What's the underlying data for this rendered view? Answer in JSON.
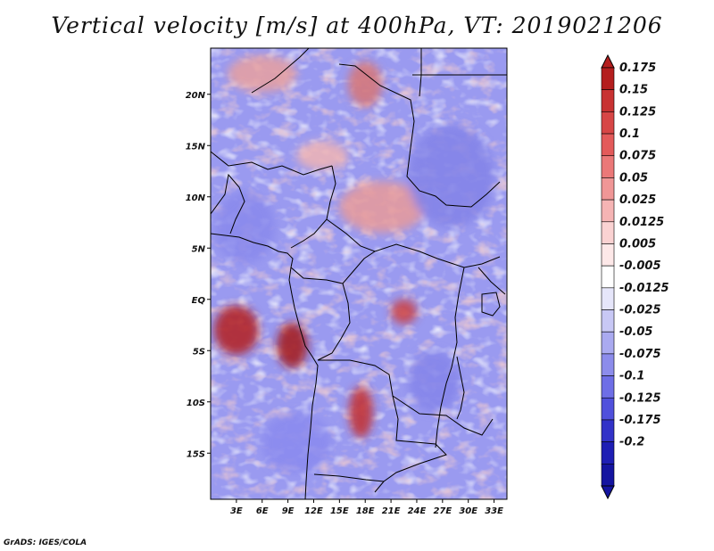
{
  "title": "Vertical velocity [m/s] at 400hPa, VT: 2019021206",
  "credit": "GrADS: IGES/COLA",
  "map": {
    "region": "Central Africa",
    "lon_range": [
      0,
      34.5
    ],
    "lat_range": [
      -19.5,
      24.5
    ],
    "lat_ticks": [
      {
        "lat": 20,
        "label": "20N"
      },
      {
        "lat": 15,
        "label": "15N"
      },
      {
        "lat": 10,
        "label": "10N"
      },
      {
        "lat": 5,
        "label": "5N"
      },
      {
        "lat": 0,
        "label": "EQ"
      },
      {
        "lat": -5,
        "label": "5S"
      },
      {
        "lat": -10,
        "label": "10S"
      },
      {
        "lat": -15,
        "label": "15S"
      }
    ],
    "lon_ticks": [
      {
        "lon": 3,
        "label": "3E"
      },
      {
        "lon": 6,
        "label": "6E"
      },
      {
        "lon": 9,
        "label": "9E"
      },
      {
        "lon": 12,
        "label": "12E"
      },
      {
        "lon": 15,
        "label": "15E"
      },
      {
        "lon": 18,
        "label": "18E"
      },
      {
        "lon": 21,
        "label": "21E"
      },
      {
        "lon": 24,
        "label": "24E"
      },
      {
        "lon": 27,
        "label": "27E"
      },
      {
        "lon": 30,
        "label": "30E"
      },
      {
        "lon": 33,
        "label": "33E"
      }
    ],
    "field_background": "#9a9af0",
    "features": [
      {
        "kind": "strong-ascent",
        "lon": 3,
        "lat": -3,
        "rx": 2.6,
        "ry": 2.4,
        "color": "#b41e1e"
      },
      {
        "kind": "strong-ascent",
        "lon": 9.5,
        "lat": -4.5,
        "rx": 1.8,
        "ry": 2.2,
        "color": "#a51515"
      },
      {
        "kind": "strong-ascent",
        "lon": 17.5,
        "lat": -11,
        "rx": 1.4,
        "ry": 2.5,
        "color": "#c33030"
      },
      {
        "kind": "ascent",
        "lon": 22.5,
        "lat": -1.2,
        "rx": 1.5,
        "ry": 1.2,
        "color": "#cc4040"
      },
      {
        "kind": "ascent",
        "lon": 20,
        "lat": 9,
        "rx": 5,
        "ry": 2.5,
        "color": "#e89a9a"
      },
      {
        "kind": "ascent",
        "lon": 6,
        "lat": 22,
        "rx": 4,
        "ry": 1.8,
        "color": "#e8a0a0"
      },
      {
        "kind": "ascent",
        "lon": 18,
        "lat": 21,
        "rx": 2,
        "ry": 2.2,
        "color": "#d77575"
      },
      {
        "kind": "ascent",
        "lon": 13,
        "lat": 14,
        "rx": 3,
        "ry": 1.4,
        "color": "#f0b4b4"
      },
      {
        "kind": "subsidence",
        "lon": 28,
        "lat": 12,
        "rx": 5,
        "ry": 5,
        "color": "#8282e8"
      },
      {
        "kind": "subsidence",
        "lon": 4,
        "lat": 7,
        "rx": 3.5,
        "ry": 3.5,
        "color": "#8888ec"
      },
      {
        "kind": "subsidence",
        "lon": 10,
        "lat": -14,
        "rx": 4,
        "ry": 3,
        "color": "#8a8aee"
      },
      {
        "kind": "subsidence",
        "lon": 26,
        "lat": -8,
        "rx": 3,
        "ry": 3,
        "color": "#8484ea"
      }
    ]
  },
  "colorbar": {
    "levels": [
      {
        "label": "0.175",
        "color": "#b41e1e"
      },
      {
        "label": "0.15",
        "color": "#c83232"
      },
      {
        "label": "0.125",
        "color": "#d74646"
      },
      {
        "label": "0.1",
        "color": "#e35a5a"
      },
      {
        "label": "0.075",
        "color": "#eb7878"
      },
      {
        "label": "0.05",
        "color": "#f09696"
      },
      {
        "label": "0.025",
        "color": "#f5b4b4"
      },
      {
        "label": "0.0125",
        "color": "#fad2d2"
      },
      {
        "label": "0.005",
        "color": "#fde8e8"
      },
      {
        "label": "-0.005",
        "color": "#ffffff"
      },
      {
        "label": "-0.0125",
        "color": "#e6e6fa"
      },
      {
        "label": "-0.025",
        "color": "#c8c8f5"
      },
      {
        "label": "-0.05",
        "color": "#aaaaf0"
      },
      {
        "label": "-0.075",
        "color": "#8c8ceb"
      },
      {
        "label": "-0.1",
        "color": "#6e6ee6"
      },
      {
        "label": "-0.125",
        "color": "#5050dc"
      },
      {
        "label": "-0.175",
        "color": "#3232c8"
      },
      {
        "label": "-0.2",
        "color": "#1e1eb4"
      }
    ],
    "bottom_color": "#1414a0"
  }
}
